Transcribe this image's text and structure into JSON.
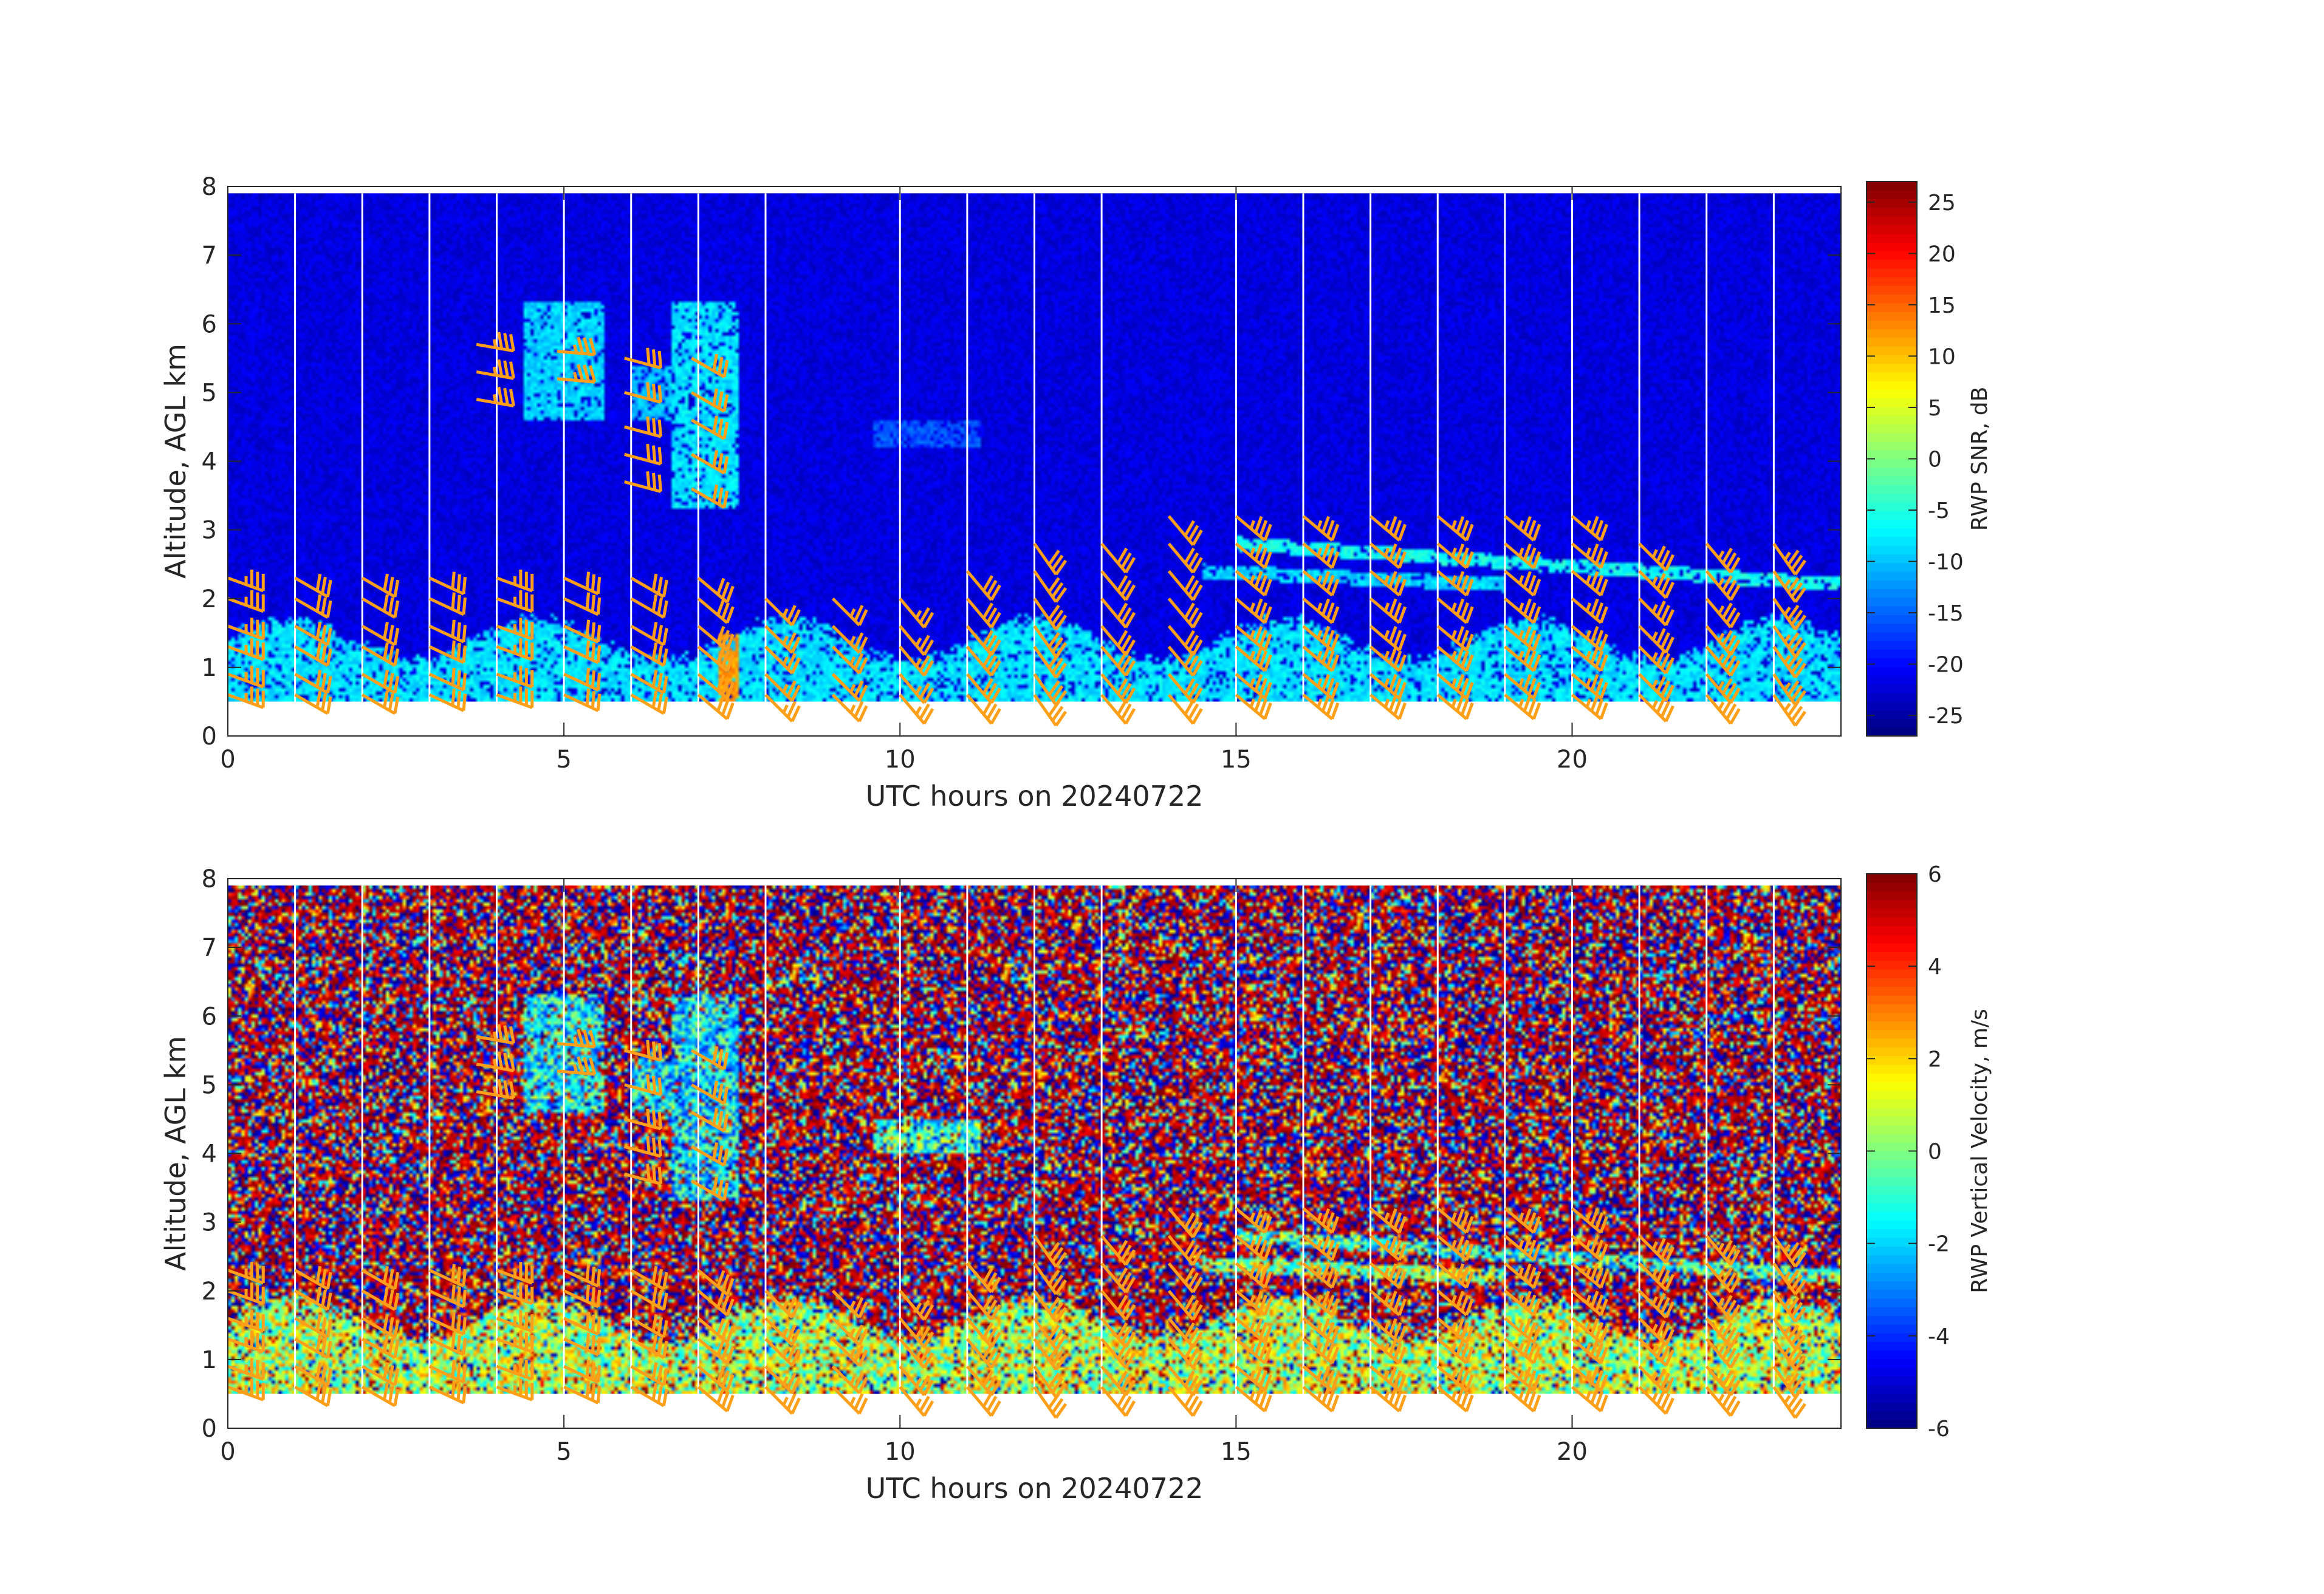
{
  "figure": {
    "background": "#ffffff",
    "barb_color": "#ff9f1a",
    "colormap": "jet"
  },
  "chart_data": [
    {
      "type": "heatmap",
      "name": "snr",
      "xlabel": "UTC hours on 20240722",
      "ylabel": "Altitude, AGL km",
      "xlim": [
        0,
        24
      ],
      "ylim": [
        0,
        8
      ],
      "xticks": [
        0,
        5,
        10,
        15,
        20
      ],
      "yticks": [
        0,
        1,
        2,
        3,
        4,
        5,
        6,
        7,
        8
      ],
      "data_altitude_range_km": [
        0.5,
        7.9
      ],
      "colorbar": {
        "label": "RWP SNR, dB",
        "range": [
          -27,
          27
        ],
        "ticks": [
          -25,
          -20,
          -15,
          -10,
          -5,
          0,
          5,
          10,
          15,
          20,
          25
        ]
      },
      "background_value": -22,
      "data_gaps_hours": [
        1,
        2,
        3,
        4,
        5,
        6,
        7,
        8,
        10,
        11,
        12,
        13,
        15,
        16,
        17,
        18,
        19,
        20,
        21,
        22,
        23
      ],
      "features": [
        {
          "kind": "boundary_layer",
          "t": [
            0,
            24
          ],
          "z": [
            0.5,
            1.3
          ],
          "value": -8
        },
        {
          "kind": "cloud_column",
          "t": [
            6.6,
            7.6
          ],
          "z": [
            3.3,
            6.3
          ],
          "value": -8
        },
        {
          "kind": "cloud_patch",
          "t": [
            4.4,
            5.6
          ],
          "z": [
            4.6,
            6.3
          ],
          "value": -9
        },
        {
          "kind": "cloud_patch",
          "t": [
            6.0,
            6.6
          ],
          "z": [
            4.6,
            5.4
          ],
          "value": -10
        },
        {
          "kind": "hot_core",
          "t": [
            7.3,
            7.6
          ],
          "z": [
            0.5,
            1.5
          ],
          "value": 12
        },
        {
          "kind": "elevated_layer",
          "t": [
            15,
            24
          ],
          "z_start": 2.8,
          "z_end": 2.2,
          "value": -6
        },
        {
          "kind": "elevated_layer",
          "t": [
            14.5,
            19
          ],
          "z_start": 2.4,
          "z_end": 2.2,
          "value": -9
        },
        {
          "kind": "faint_arc",
          "t": [
            9.6,
            11.2
          ],
          "z": [
            4.2,
            4.6
          ],
          "value": -16
        }
      ]
    },
    {
      "type": "heatmap",
      "name": "vertical_velocity",
      "xlabel": "UTC hours on 20240722",
      "ylabel": "Altitude, AGL km",
      "xlim": [
        0,
        24
      ],
      "ylim": [
        0,
        8
      ],
      "xticks": [
        0,
        5,
        10,
        15,
        20
      ],
      "yticks": [
        0,
        1,
        2,
        3,
        4,
        5,
        6,
        7,
        8
      ],
      "data_altitude_range_km": [
        0.5,
        7.9
      ],
      "colorbar": {
        "label": "RWP Vertical Velocity, m/s",
        "range": [
          -6,
          6
        ],
        "ticks": [
          -6,
          -4,
          -2,
          0,
          2,
          4,
          6
        ]
      },
      "background": "noise",
      "data_gaps_hours": [
        1,
        2,
        3,
        4,
        5,
        6,
        7,
        8,
        10,
        11,
        12,
        13,
        15,
        16,
        17,
        18,
        19,
        20,
        21,
        22,
        23
      ],
      "features": [
        {
          "kind": "boundary_layer",
          "t": [
            0,
            24
          ],
          "z": [
            0.5,
            1.5
          ],
          "value": 0.6
        },
        {
          "kind": "cloud_column",
          "t": [
            6.6,
            7.6
          ],
          "z": [
            3.3,
            6.3
          ],
          "value": -1.8
        },
        {
          "kind": "cloud_patch",
          "t": [
            4.4,
            5.6
          ],
          "z": [
            4.6,
            6.3
          ],
          "value": -1.6
        },
        {
          "kind": "cloud_patch",
          "t": [
            6.0,
            6.6
          ],
          "z": [
            4.6,
            5.4
          ],
          "value": -1.6
        },
        {
          "kind": "elevated_layer",
          "t": [
            15,
            24
          ],
          "z_start": 2.8,
          "z_end": 2.2,
          "value": -1.0
        },
        {
          "kind": "elevated_layer",
          "t": [
            14.5,
            19
          ],
          "z_start": 2.4,
          "z_end": 2.2,
          "value": 0.4
        },
        {
          "kind": "faint_arc",
          "t": [
            9.6,
            11.2
          ],
          "z": [
            4.0,
            4.5
          ],
          "value": -0.8
        }
      ]
    }
  ],
  "wind_barbs": {
    "units": "kt",
    "profiles": [
      {
        "t": 0.0,
        "heights": [
          0.6,
          0.9,
          1.3,
          1.6,
          2.0,
          2.3
        ],
        "speed": 35,
        "dir": 290
      },
      {
        "t": 1.0,
        "heights": [
          0.6,
          0.9,
          1.3,
          1.6,
          2.0,
          2.3
        ],
        "speed": 30,
        "dir": 300
      },
      {
        "t": 2.0,
        "heights": [
          0.6,
          0.9,
          1.3,
          1.6,
          2.0,
          2.3
        ],
        "speed": 30,
        "dir": 300
      },
      {
        "t": 3.0,
        "heights": [
          0.6,
          0.9,
          1.3,
          1.6,
          2.0,
          2.3
        ],
        "speed": 30,
        "dir": 295
      },
      {
        "t": 3.7,
        "heights": [
          4.9,
          5.3,
          5.7
        ],
        "speed": 35,
        "dir": 280
      },
      {
        "t": 4.0,
        "heights": [
          0.6,
          0.9,
          1.3,
          1.6,
          2.0,
          2.3
        ],
        "speed": 35,
        "dir": 290
      },
      {
        "t": 4.9,
        "heights": [
          5.2,
          5.6
        ],
        "speed": 35,
        "dir": 275
      },
      {
        "t": 5.0,
        "heights": [
          0.6,
          0.9,
          1.3,
          1.6,
          2.0,
          2.3
        ],
        "speed": 30,
        "dir": 295
      },
      {
        "t": 5.9,
        "heights": [
          3.7,
          4.1,
          4.5,
          5.0,
          5.5
        ],
        "speed": 30,
        "dir": 285
      },
      {
        "t": 6.0,
        "heights": [
          0.6,
          0.9,
          1.3,
          1.6,
          2.0,
          2.3
        ],
        "speed": 30,
        "dir": 300
      },
      {
        "t": 6.9,
        "heights": [
          3.6,
          4.1,
          4.6,
          5.0,
          5.5
        ],
        "speed": 30,
        "dir": 300
      },
      {
        "t": 7.0,
        "heights": [
          0.6,
          0.9,
          1.3,
          1.6,
          2.0,
          2.3
        ],
        "speed": 30,
        "dir": 310
      },
      {
        "t": 8.0,
        "heights": [
          0.6,
          0.9,
          1.3,
          1.6,
          2.0
        ],
        "speed": 25,
        "dir": 315
      },
      {
        "t": 9.0,
        "heights": [
          0.6,
          0.9,
          1.3,
          1.6,
          2.0
        ],
        "speed": 25,
        "dir": 315
      },
      {
        "t": 10.0,
        "heights": [
          0.6,
          0.9,
          1.3,
          1.6,
          2.0
        ],
        "speed": 25,
        "dir": 320
      },
      {
        "t": 11.0,
        "heights": [
          0.6,
          0.9,
          1.3,
          1.6,
          2.0,
          2.4
        ],
        "speed": 30,
        "dir": 320
      },
      {
        "t": 12.0,
        "heights": [
          0.6,
          0.9,
          1.3,
          1.6,
          2.0,
          2.4,
          2.8
        ],
        "speed": 30,
        "dir": 325
      },
      {
        "t": 13.0,
        "heights": [
          0.6,
          0.9,
          1.3,
          1.6,
          2.0,
          2.4,
          2.8
        ],
        "speed": 30,
        "dir": 320
      },
      {
        "t": 14.0,
        "heights": [
          0.6,
          0.9,
          1.3,
          1.6,
          2.0,
          2.4,
          2.8,
          3.2
        ],
        "speed": 30,
        "dir": 320
      },
      {
        "t": 15.0,
        "heights": [
          0.6,
          0.9,
          1.3,
          1.6,
          2.0,
          2.4,
          2.8,
          3.2
        ],
        "speed": 35,
        "dir": 310
      },
      {
        "t": 16.0,
        "heights": [
          0.6,
          0.9,
          1.3,
          1.6,
          2.0,
          2.4,
          2.8,
          3.2
        ],
        "speed": 35,
        "dir": 310
      },
      {
        "t": 17.0,
        "heights": [
          0.6,
          0.9,
          1.3,
          1.6,
          2.0,
          2.4,
          2.8,
          3.2
        ],
        "speed": 35,
        "dir": 310
      },
      {
        "t": 18.0,
        "heights": [
          0.6,
          0.9,
          1.3,
          1.6,
          2.0,
          2.4,
          2.8,
          3.2
        ],
        "speed": 35,
        "dir": 310
      },
      {
        "t": 19.0,
        "heights": [
          0.6,
          0.9,
          1.3,
          1.6,
          2.0,
          2.4,
          2.8,
          3.2
        ],
        "speed": 35,
        "dir": 310
      },
      {
        "t": 20.0,
        "heights": [
          0.6,
          0.9,
          1.3,
          1.6,
          2.0,
          2.4,
          2.8,
          3.2
        ],
        "speed": 35,
        "dir": 310
      },
      {
        "t": 21.0,
        "heights": [
          0.6,
          0.9,
          1.3,
          1.6,
          2.0,
          2.4,
          2.8
        ],
        "speed": 35,
        "dir": 315
      },
      {
        "t": 22.0,
        "heights": [
          0.6,
          0.9,
          1.3,
          1.6,
          2.0,
          2.4,
          2.8
        ],
        "speed": 35,
        "dir": 320
      },
      {
        "t": 23.0,
        "heights": [
          0.6,
          0.9,
          1.3,
          1.6,
          2.0,
          2.4,
          2.8
        ],
        "speed": 35,
        "dir": 325
      }
    ]
  }
}
